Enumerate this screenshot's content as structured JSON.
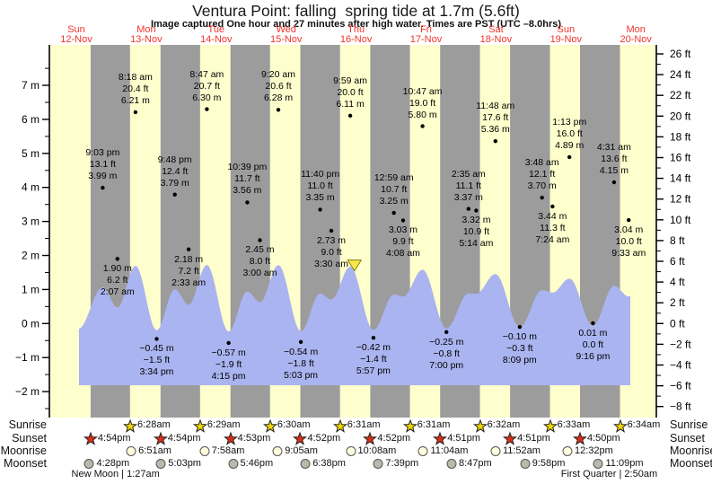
{
  "title": "Ventura Point: falling  spring tide at 1.7m (5.6ft)",
  "subtitle": "Image captured One hour and 27 minutes after high water. Times are PST (UTC –8.0hrs)",
  "days": [
    {
      "dow": "Sun",
      "date": "12-Nov"
    },
    {
      "dow": "Mon",
      "date": "13-Nov"
    },
    {
      "dow": "Tue",
      "date": "14-Nov"
    },
    {
      "dow": "Wed",
      "date": "15-Nov"
    },
    {
      "dow": "Thu",
      "date": "16-Nov"
    },
    {
      "dow": "Fri",
      "date": "17-Nov"
    },
    {
      "dow": "Sat",
      "date": "18-Nov"
    },
    {
      "dow": "Sun",
      "date": "19-Nov"
    },
    {
      "dow": "Mon",
      "date": "20-Nov"
    }
  ],
  "axes": {
    "left_unit": "m",
    "left_ticks": [
      {
        "value": 7,
        "label": "7 m"
      },
      {
        "value": 6,
        "label": "6 m"
      },
      {
        "value": 5,
        "label": "5 m"
      },
      {
        "value": 4,
        "label": "4 m"
      },
      {
        "value": 3,
        "label": "3 m"
      },
      {
        "value": 2,
        "label": "2 m"
      },
      {
        "value": 1,
        "label": "1 m"
      },
      {
        "value": 0,
        "label": "0 m"
      },
      {
        "value": -1,
        "label": "−1 m"
      },
      {
        "value": -2,
        "label": "−2 m"
      }
    ],
    "right_unit": "ft",
    "right_ticks": [
      {
        "value": 26,
        "label": "26 ft"
      },
      {
        "value": 24,
        "label": "24 ft"
      },
      {
        "value": 22,
        "label": "22 ft"
      },
      {
        "value": 20,
        "label": "20 ft"
      },
      {
        "value": 18,
        "label": "18 ft"
      },
      {
        "value": 16,
        "label": "16 ft"
      },
      {
        "value": 14,
        "label": "14 ft"
      },
      {
        "value": 12,
        "label": "12 ft"
      },
      {
        "value": 10,
        "label": "10 ft"
      },
      {
        "value": 8,
        "label": "8 ft"
      },
      {
        "value": 6,
        "label": "6 ft"
      },
      {
        "value": 4,
        "label": "4 ft"
      },
      {
        "value": 2,
        "label": "2 ft"
      },
      {
        "value": 0,
        "label": "0 ft"
      },
      {
        "value": -2,
        "label": "−2 ft"
      },
      {
        "value": -4,
        "label": "−4 ft"
      },
      {
        "value": -6,
        "label": "−6 ft"
      },
      {
        "value": -8,
        "label": "−8 ft"
      }
    ]
  },
  "chart_data": {
    "type": "area",
    "title": "Tide height curve with high/low annotations",
    "x_unit": "day index 0-8 (Sun 12-Nov to Mon 20-Nov), time of day",
    "y_units": [
      "m",
      "ft"
    ],
    "ylim_m": [
      -2.5,
      8
    ],
    "tide_events": [
      {
        "day": 0,
        "time": "21:03",
        "height_m": 3.99,
        "time_label": "9:03 pm",
        "ft_label": "13.1 ft",
        "m_label": "3.99 m",
        "text": "above"
      },
      {
        "day": 1,
        "time": "02:07",
        "height_m": 1.9,
        "time_label": "2:07 am",
        "ft_label": "6.2 ft",
        "m_label": "1.90 m",
        "text": "below"
      },
      {
        "day": 1,
        "time": "08:18",
        "height_m": 6.21,
        "time_label": "8:18 am",
        "ft_label": "20.4 ft",
        "m_label": "6.21 m",
        "text": "above"
      },
      {
        "day": 1,
        "time": "15:34",
        "height_m": -0.45,
        "time_label": "3:34 pm",
        "ft_label": "−1.5 ft",
        "m_label": "−0.45 m",
        "text": "below"
      },
      {
        "day": 1,
        "time": "21:48",
        "height_m": 3.79,
        "time_label": "9:48 pm",
        "ft_label": "12.4 ft",
        "m_label": "3.79 m",
        "text": "above"
      },
      {
        "day": 2,
        "time": "02:33",
        "height_m": 2.18,
        "time_label": "2:33 am",
        "ft_label": "7.2 ft",
        "m_label": "2.18 m",
        "text": "below"
      },
      {
        "day": 2,
        "time": "08:47",
        "height_m": 6.3,
        "time_label": "8:47 am",
        "ft_label": "20.7 ft",
        "m_label": "6.30 m",
        "text": "above"
      },
      {
        "day": 2,
        "time": "16:15",
        "height_m": -0.57,
        "time_label": "4:15 pm",
        "ft_label": "−1.9 ft",
        "m_label": "−0.57 m",
        "text": "below"
      },
      {
        "day": 2,
        "time": "22:39",
        "height_m": 3.56,
        "time_label": "10:39 pm",
        "ft_label": "11.7 ft",
        "m_label": "3.56 m",
        "text": "above"
      },
      {
        "day": 3,
        "time": "03:00",
        "height_m": 2.45,
        "time_label": "3:00 am",
        "ft_label": "8.0 ft",
        "m_label": "2.45 m",
        "text": "below"
      },
      {
        "day": 3,
        "time": "09:20",
        "height_m": 6.28,
        "time_label": "9:20 am",
        "ft_label": "20.6 ft",
        "m_label": "6.28 m",
        "text": "above"
      },
      {
        "day": 3,
        "time": "17:03",
        "height_m": -0.54,
        "time_label": "5:03 pm",
        "ft_label": "−1.8 ft",
        "m_label": "−0.54 m",
        "text": "below"
      },
      {
        "day": 3,
        "time": "23:40",
        "height_m": 3.35,
        "time_label": "11:40 pm",
        "ft_label": "11.0 ft",
        "m_label": "3.35 m",
        "text": "above"
      },
      {
        "day": 4,
        "time": "03:30",
        "height_m": 2.73,
        "time_label": "3:30 am",
        "ft_label": "9.0 ft",
        "m_label": "2.73 m",
        "text": "below"
      },
      {
        "day": 4,
        "time": "09:59",
        "height_m": 6.11,
        "time_label": "9:59 am",
        "ft_label": "20.0 ft",
        "m_label": "6.11 m",
        "text": "above"
      },
      {
        "day": 4,
        "time": "17:57",
        "height_m": -0.42,
        "time_label": "5:57 pm",
        "ft_label": "−1.4 ft",
        "m_label": "−0.42 m",
        "text": "below"
      },
      {
        "day": 5,
        "time": "00:59",
        "height_m": 3.25,
        "time_label": "12:59 am",
        "ft_label": "10.7 ft",
        "m_label": "3.25 m",
        "text": "above"
      },
      {
        "day": 5,
        "time": "04:08",
        "height_m": 3.03,
        "time_label": "4:08 am",
        "ft_label": "9.9 ft",
        "m_label": "3.03 m",
        "text": "below"
      },
      {
        "day": 5,
        "time": "10:47",
        "height_m": 5.8,
        "time_label": "10:47 am",
        "ft_label": "19.0 ft",
        "m_label": "5.80 m",
        "text": "above"
      },
      {
        "day": 5,
        "time": "19:00",
        "height_m": -0.25,
        "time_label": "7:00 pm",
        "ft_label": "−0.8 ft",
        "m_label": "−0.25 m",
        "text": "below"
      },
      {
        "day": 6,
        "time": "02:35",
        "height_m": 3.37,
        "time_label": "2:35 am",
        "ft_label": "11.1 ft",
        "m_label": "3.37 m",
        "text": "above"
      },
      {
        "day": 6,
        "time": "05:14",
        "height_m": 3.32,
        "time_label": "5:14 am",
        "ft_label": "10.9 ft",
        "m_label": "3.32 m",
        "text": "below"
      },
      {
        "day": 6,
        "time": "11:48",
        "height_m": 5.36,
        "time_label": "11:48 am",
        "ft_label": "17.6 ft",
        "m_label": "5.36 m",
        "text": "above"
      },
      {
        "day": 6,
        "time": "20:09",
        "height_m": -0.1,
        "time_label": "8:09 pm",
        "ft_label": "−0.3 ft",
        "m_label": "−0.10 m",
        "text": "below"
      },
      {
        "day": 7,
        "time": "03:48",
        "height_m": 3.7,
        "time_label": "3:48 am",
        "ft_label": "12.1 ft",
        "m_label": "3.70 m",
        "text": "above"
      },
      {
        "day": 7,
        "time": "07:24",
        "height_m": 3.44,
        "time_label": "7:24 am",
        "ft_label": "11.3 ft",
        "m_label": "3.44 m",
        "text": "below"
      },
      {
        "day": 7,
        "time": "13:13",
        "height_m": 4.89,
        "time_label": "1:13 pm",
        "ft_label": "16.0 ft",
        "m_label": "4.89 m",
        "text": "above"
      },
      {
        "day": 7,
        "time": "21:16",
        "height_m": 0.01,
        "time_label": "9:16 pm",
        "ft_label": "0.0 ft",
        "m_label": "0.01 m",
        "text": "below"
      },
      {
        "day": 8,
        "time": "04:31",
        "height_m": 4.15,
        "time_label": "4:31 am",
        "ft_label": "13.6 ft",
        "m_label": "4.15 m",
        "text": "above"
      },
      {
        "day": 8,
        "time": "09:33",
        "height_m": 3.04,
        "time_label": "9:33 am",
        "ft_label": "10.0 ft",
        "m_label": "3.04 m",
        "text": "below"
      }
    ],
    "edge_events": [
      {
        "day": 0,
        "time": "12:40",
        "height_m": -0.3
      },
      {
        "day": 8,
        "time": "15:00",
        "height_m": 4.9
      }
    ],
    "current_marker": {
      "day": 4,
      "time": "11:26",
      "height_m": 1.7,
      "note": "1.7m (5.6ft)"
    }
  },
  "astro": {
    "rows": [
      {
        "id": "sunrise",
        "label": "Sunrise",
        "icon": "sunrise-star",
        "events": [
          {
            "day": 1,
            "time": "06:28",
            "label": "6:28am"
          },
          {
            "day": 2,
            "time": "06:29",
            "label": "6:29am"
          },
          {
            "day": 3,
            "time": "06:30",
            "label": "6:30am"
          },
          {
            "day": 4,
            "time": "06:31",
            "label": "6:31am"
          },
          {
            "day": 5,
            "time": "06:31",
            "label": "6:31am"
          },
          {
            "day": 6,
            "time": "06:32",
            "label": "6:32am"
          },
          {
            "day": 7,
            "time": "06:33",
            "label": "6:33am"
          },
          {
            "day": 8,
            "time": "06:34",
            "label": "6:34am"
          }
        ]
      },
      {
        "id": "sunset",
        "label": "Sunset",
        "icon": "sunset-star",
        "events": [
          {
            "day": 0,
            "time": "16:54",
            "label": "4:54pm"
          },
          {
            "day": 1,
            "time": "16:54",
            "label": "4:54pm"
          },
          {
            "day": 2,
            "time": "16:53",
            "label": "4:53pm"
          },
          {
            "day": 3,
            "time": "16:52",
            "label": "4:52pm"
          },
          {
            "day": 4,
            "time": "16:52",
            "label": "4:52pm"
          },
          {
            "day": 5,
            "time": "16:51",
            "label": "4:51pm"
          },
          {
            "day": 6,
            "time": "16:51",
            "label": "4:51pm"
          },
          {
            "day": 7,
            "time": "16:50",
            "label": "4:50pm"
          }
        ]
      },
      {
        "id": "moonrise",
        "label": "Moonrise",
        "icon": "moonrise-circle",
        "events": [
          {
            "day": 1,
            "time": "06:51",
            "label": "6:51am"
          },
          {
            "day": 2,
            "time": "07:58",
            "label": "7:58am"
          },
          {
            "day": 3,
            "time": "09:05",
            "label": "9:05am"
          },
          {
            "day": 4,
            "time": "10:08",
            "label": "10:08am"
          },
          {
            "day": 5,
            "time": "11:04",
            "label": "11:04am"
          },
          {
            "day": 6,
            "time": "11:52",
            "label": "11:52am"
          },
          {
            "day": 7,
            "time": "12:32",
            "label": "12:32pm"
          }
        ]
      },
      {
        "id": "moonset",
        "label": "Moonset",
        "icon": "moonset-circle",
        "events": [
          {
            "day": 0,
            "time": "16:28",
            "label": "4:28pm"
          },
          {
            "day": 1,
            "time": "17:03",
            "label": "5:03pm"
          },
          {
            "day": 2,
            "time": "17:46",
            "label": "5:46pm"
          },
          {
            "day": 3,
            "time": "18:38",
            "label": "6:38pm"
          },
          {
            "day": 4,
            "time": "19:39",
            "label": "7:39pm"
          },
          {
            "day": 5,
            "time": "20:47",
            "label": "8:47pm"
          },
          {
            "day": 6,
            "time": "21:58",
            "label": "9:58pm"
          },
          {
            "day": 7,
            "time": "23:09",
            "label": "11:09pm"
          }
        ]
      }
    ],
    "phases": [
      {
        "day": 1,
        "time": "01:27",
        "label": "New Moon | 1:27am"
      },
      {
        "day": 8,
        "time": "02:50",
        "label": "First Quarter | 2:50am"
      }
    ]
  },
  "colors": {
    "stripe_day": "#ffffcd",
    "stripe_night": "#9c9c9c",
    "tide_fill": "#aab4f0",
    "day_label_red": "#f0342c",
    "sunrise_star": "#eed400",
    "sunset_star": "#dd2d16",
    "moonrise_fill": "#ffffdd",
    "moonset_fill": "#b9b9ac",
    "marker_fill": "#f6e84a",
    "axis_black": "#000000"
  }
}
